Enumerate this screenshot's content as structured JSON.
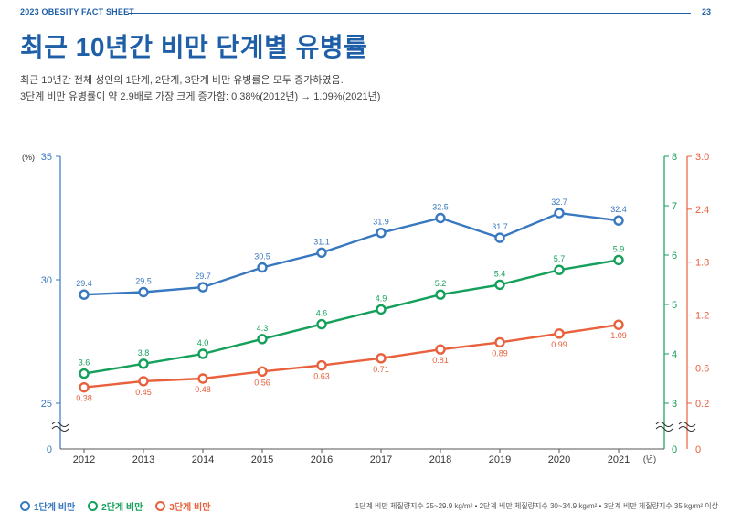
{
  "header": {
    "left": "2023 OBESITY FACT SHEET",
    "page": "23"
  },
  "title": "최근 10년간 비만 단계별 유병률",
  "subtitle": [
    "최근 10년간 전체 성인의 1단계, 2단계, 3단계 비만 유병률은 모두 증가하였음.",
    "3단계 비만 유병률이 약 2.9배로 가장 크게 증가함: 0.38%(2012년) → 1.09%(2021년)"
  ],
  "colors": {
    "blue": "#3878c0",
    "green": "#14a05a",
    "red": "#e8603c",
    "accent": "#1f5fa8"
  },
  "chart_data": {
    "type": "line",
    "x": [
      "2012",
      "2013",
      "2014",
      "2015",
      "2016",
      "2017",
      "2018",
      "2019",
      "2020",
      "2021"
    ],
    "xlabel": "(년)",
    "series": [
      {
        "name": "1단계 비만",
        "axis": "left",
        "color": "#3878c0",
        "values": [
          29.4,
          29.5,
          29.7,
          30.5,
          31.1,
          31.9,
          32.5,
          31.7,
          32.7,
          32.4
        ],
        "labels": [
          "29.4",
          "29.5",
          "29.7",
          "30.5",
          "31.1",
          "31.9",
          "32.5",
          "31.7",
          "32.7",
          "32.4"
        ]
      },
      {
        "name": "2단계 비만",
        "axis": "right1",
        "color": "#14a05a",
        "values": [
          3.6,
          3.8,
          4.0,
          4.3,
          4.6,
          4.9,
          5.2,
          5.4,
          5.7,
          5.9
        ],
        "labels": [
          "3.6",
          "3.8",
          "4.0",
          "4.3",
          "4.6",
          "4.9",
          "5.2",
          "5.4",
          "5.7",
          "5.9"
        ]
      },
      {
        "name": "3단계 비만",
        "axis": "right2",
        "color": "#e8603c",
        "values": [
          0.38,
          0.45,
          0.48,
          0.56,
          0.63,
          0.71,
          0.81,
          0.89,
          0.99,
          1.09
        ],
        "labels": [
          "0.38",
          "0.45",
          "0.48",
          "0.56",
          "0.63",
          "0.71",
          "0.81",
          "0.89",
          "0.99",
          "1.09"
        ]
      }
    ],
    "axes": {
      "left": {
        "unit": "(%)",
        "ticks": [
          "35",
          "30",
          "25"
        ],
        "range": [
          25,
          35
        ],
        "zero_label": "0"
      },
      "right1": {
        "ticks": [
          "8",
          "7",
          "6",
          "5",
          "4",
          "3"
        ],
        "range": [
          3,
          8
        ],
        "zero_label": "0"
      },
      "right2": {
        "ticks": [
          "3.0",
          "2.4",
          "1.8",
          "1.2",
          "0.6",
          "0.2"
        ],
        "range": [
          0.2,
          3.0
        ],
        "zero_label": "0"
      }
    }
  },
  "legend": [
    {
      "label": "1단계 비만",
      "color": "#3878c0"
    },
    {
      "label": "2단계 비만",
      "color": "#14a05a"
    },
    {
      "label": "3단계 비만",
      "color": "#e8603c"
    }
  ],
  "footnote": "1단계 비만 체질량지수 25~29.9 kg/m² • 2단계 비만 체질량지수 30~34.9 kg/m² • 3단계 비만 체질량지수 35 kg/m² 이상"
}
